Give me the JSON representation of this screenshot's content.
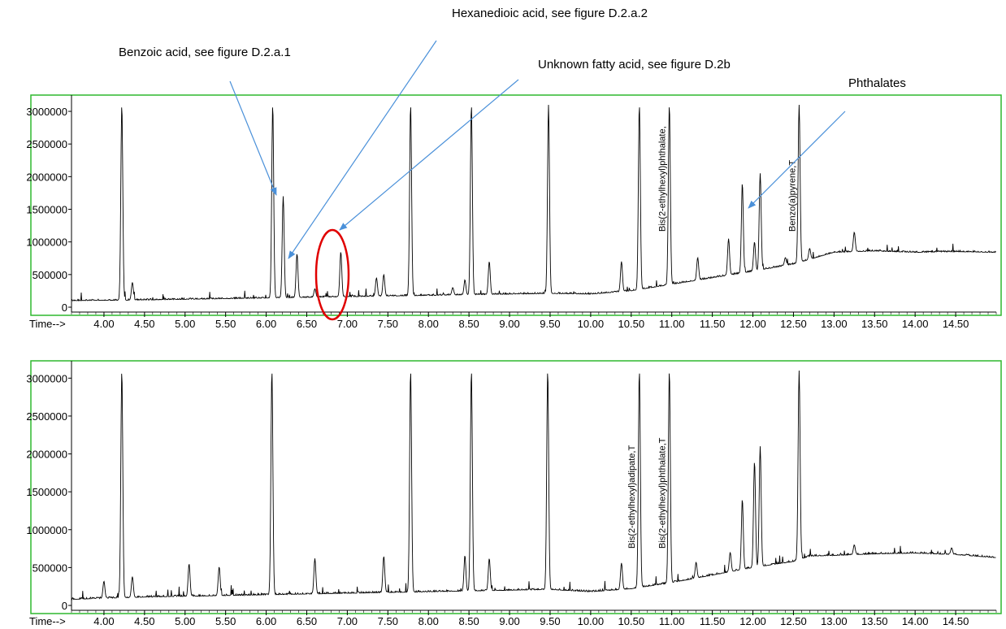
{
  "annotations": {
    "hexanedioic": "Hexanedioic acid, see figure D.2.a.2",
    "benzoic": "Benzoic acid, see figure D.2.a.1",
    "fatty": "Unknown fatty acid, see figure D.2b",
    "phthalates": "Phthalates"
  },
  "colors": {
    "frame": "#2eb82e",
    "trace": "#000000",
    "arrow": "#4a90d9",
    "highlight": "#e00000"
  },
  "chart_data": [
    {
      "type": "line",
      "xlabel": "Time-->",
      "xlim": [
        3.6,
        15.0
      ],
      "ylim": [
        0,
        3100000
      ],
      "x_ticks": [
        "4.00",
        "4.50",
        "5.00",
        "5.50",
        "6.00",
        "6.50",
        "7.00",
        "7.50",
        "8.00",
        "8.50",
        "9.00",
        "9.50",
        "10.00",
        "10.50",
        "11.00",
        "11.50",
        "12.00",
        "12.50",
        "13.00",
        "13.50",
        "14.00",
        "14.50"
      ],
      "y_ticks": [
        "0",
        "500000",
        "1000000",
        "1500000",
        "2000000",
        "2500000",
        "3000000"
      ],
      "grid": false,
      "peak_labels": [
        {
          "text": "Bis(2-ethylhexyl)phthalate,",
          "x": 10.98
        },
        {
          "text": "Benzo(a)pyrene,T",
          "x": 12.58
        }
      ],
      "baseline": [
        [
          3.6,
          100000
        ],
        [
          4.5,
          110000
        ],
        [
          5.5,
          130000
        ],
        [
          6.5,
          150000
        ],
        [
          7.5,
          170000
        ],
        [
          8.5,
          190000
        ],
        [
          9.5,
          210000
        ],
        [
          10.0,
          200000
        ],
        [
          10.5,
          250000
        ],
        [
          11.0,
          350000
        ],
        [
          11.5,
          450000
        ],
        [
          12.0,
          550000
        ],
        [
          12.5,
          660000
        ],
        [
          13.0,
          840000
        ],
        [
          13.5,
          860000
        ],
        [
          14.0,
          840000
        ],
        [
          14.5,
          850000
        ],
        [
          15.0,
          840000
        ]
      ],
      "peaks": [
        [
          4.22,
          3100000
        ],
        [
          4.35,
          380000
        ],
        [
          6.08,
          3100000
        ],
        [
          6.21,
          1700000
        ],
        [
          6.38,
          820000
        ],
        [
          6.6,
          280000
        ],
        [
          6.92,
          850000
        ],
        [
          7.36,
          450000
        ],
        [
          7.45,
          500000
        ],
        [
          7.78,
          3100000
        ],
        [
          8.3,
          300000
        ],
        [
          8.45,
          420000
        ],
        [
          8.53,
          3100000
        ],
        [
          8.75,
          700000
        ],
        [
          9.48,
          3100000
        ],
        [
          10.38,
          700000
        ],
        [
          10.6,
          3100000
        ],
        [
          10.97,
          3100000
        ],
        [
          11.32,
          760000
        ],
        [
          11.7,
          1050000
        ],
        [
          11.87,
          1900000
        ],
        [
          12.02,
          1000000
        ],
        [
          12.09,
          2050000
        ],
        [
          12.4,
          760000
        ],
        [
          12.57,
          3100000
        ],
        [
          12.7,
          900000
        ],
        [
          13.25,
          1150000
        ]
      ]
    },
    {
      "type": "line",
      "xlabel": "Time-->",
      "xlim": [
        3.6,
        15.0
      ],
      "ylim": [
        0,
        3100000
      ],
      "x_ticks": [
        "4.00",
        "4.50",
        "5.00",
        "5.50",
        "6.00",
        "6.50",
        "7.00",
        "7.50",
        "8.00",
        "8.50",
        "9.00",
        "9.50",
        "10.00",
        "10.50",
        "11.00",
        "11.50",
        "12.00",
        "12.50",
        "13.00",
        "13.50",
        "14.00",
        "14.50"
      ],
      "y_ticks": [
        "0",
        "500000",
        "1000000",
        "1500000",
        "2000000",
        "2500000",
        "3000000"
      ],
      "grid": false,
      "peak_labels": [
        {
          "text": "Bis(2-ethylhexyl)adipate,T",
          "x": 10.6
        },
        {
          "text": "Bis(2-ethylhexyl)phthalate,T",
          "x": 10.98
        }
      ],
      "baseline": [
        [
          3.6,
          80000
        ],
        [
          4.5,
          110000
        ],
        [
          5.5,
          130000
        ],
        [
          6.5,
          150000
        ],
        [
          7.5,
          170000
        ],
        [
          8.5,
          190000
        ],
        [
          9.5,
          210000
        ],
        [
          10.0,
          180000
        ],
        [
          10.5,
          220000
        ],
        [
          11.0,
          300000
        ],
        [
          11.5,
          400000
        ],
        [
          12.0,
          500000
        ],
        [
          12.5,
          580000
        ],
        [
          12.7,
          650000
        ],
        [
          13.0,
          660000
        ],
        [
          13.5,
          680000
        ],
        [
          14.0,
          690000
        ],
        [
          14.5,
          670000
        ],
        [
          15.0,
          630000
        ]
      ],
      "peaks": [
        [
          4.0,
          320000
        ],
        [
          4.22,
          3100000
        ],
        [
          4.35,
          380000
        ],
        [
          5.05,
          550000
        ],
        [
          5.42,
          510000
        ],
        [
          6.07,
          3100000
        ],
        [
          6.6,
          620000
        ],
        [
          7.45,
          650000
        ],
        [
          7.78,
          3100000
        ],
        [
          8.45,
          660000
        ],
        [
          8.53,
          3100000
        ],
        [
          8.75,
          620000
        ],
        [
          9.47,
          3100000
        ],
        [
          10.38,
          560000
        ],
        [
          10.6,
          3100000
        ],
        [
          10.97,
          3100000
        ],
        [
          11.3,
          570000
        ],
        [
          11.72,
          700000
        ],
        [
          11.87,
          1400000
        ],
        [
          12.02,
          1900000
        ],
        [
          12.09,
          2100000
        ],
        [
          12.57,
          3100000
        ],
        [
          13.25,
          800000
        ],
        [
          14.45,
          760000
        ]
      ]
    }
  ]
}
